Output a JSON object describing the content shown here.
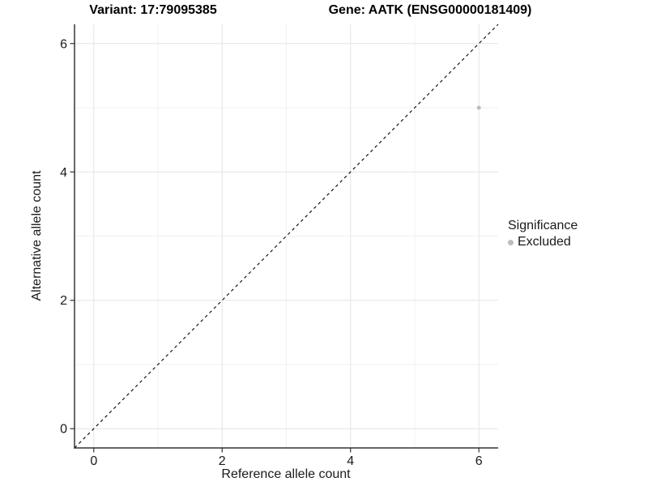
{
  "header": {
    "title_left": "Variant: 17:79095385",
    "title_right": "Gene: AATK (ENSG00000181409)"
  },
  "chart_data": {
    "type": "scatter",
    "xlabel": "Reference allele count",
    "ylabel": "Alternative allele count",
    "xlim": [
      -0.3,
      6.3
    ],
    "ylim": [
      -0.3,
      6.3
    ],
    "xticks": [
      0,
      2,
      4,
      6
    ],
    "yticks": [
      0,
      2,
      4,
      6
    ],
    "minor_xticks": [
      1,
      3,
      5
    ],
    "minor_yticks": [
      1,
      3,
      5
    ],
    "grid": "major+minor",
    "reference_line": {
      "type": "identity-diagonal",
      "style": "dashed",
      "color": "#000000"
    },
    "series": [
      {
        "name": "Excluded",
        "color": "#bdbdbd",
        "points": [
          {
            "x": 6,
            "y": 5
          }
        ]
      }
    ],
    "legend": {
      "title": "Significance",
      "position": "right",
      "items": [
        {
          "label": "Excluded",
          "color": "#bdbdbd"
        }
      ]
    }
  },
  "colors": {
    "background": "#ffffff",
    "major_grid": "#e4e4e4",
    "minor_grid": "#f0f0f0",
    "axis_line": "#333333",
    "tick_mark": "#333333",
    "tick_label": "#1a1a1a",
    "point": "#bdbdbd"
  }
}
